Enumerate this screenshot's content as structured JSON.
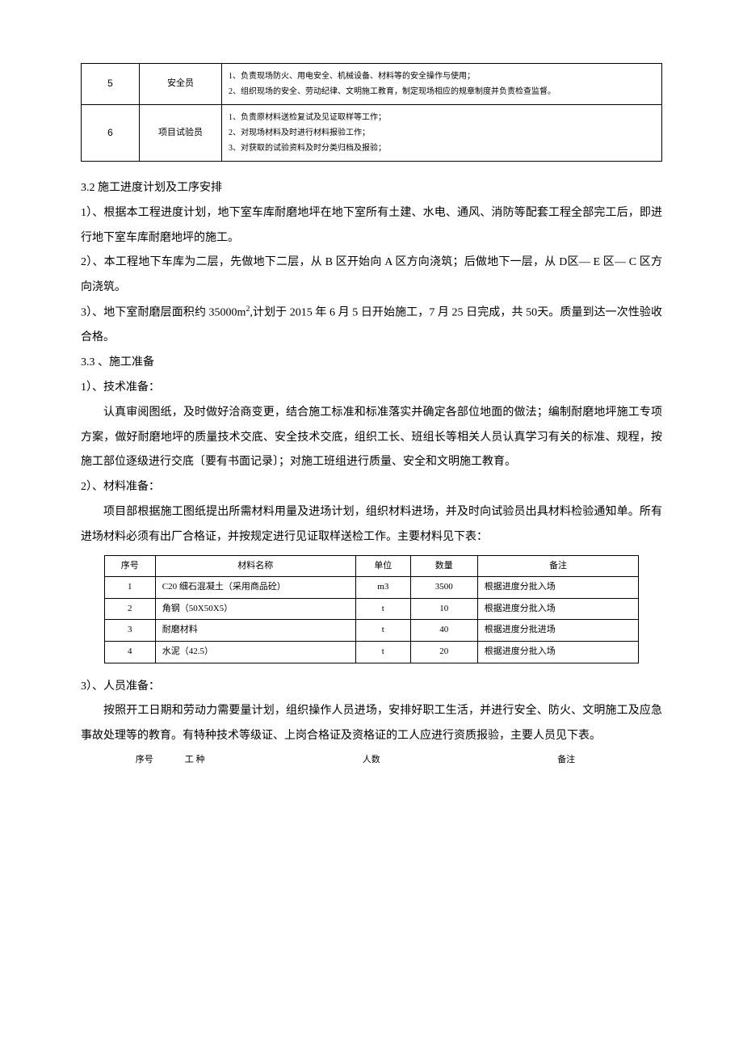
{
  "colors": {
    "text": "#000000",
    "background": "#ffffff",
    "border": "#000000"
  },
  "fonts": {
    "body_family": "SimSun",
    "body_size_pt": 14,
    "table_small_size_pt": 10,
    "table_mid_size_pt": 11,
    "line_height": 2.2
  },
  "resp_table": {
    "rows": [
      {
        "num": "5",
        "role": "安全员",
        "duties": [
          "1、负责现场防火、用电安全、机械设备、材料等的安全操作与使用；",
          "2、组织现场的安全、劳动纪律、文明施工教育，制定现场相应的规章制度并负责检查监督。"
        ]
      },
      {
        "num": "6",
        "role": "项目试验员",
        "duties": [
          "1、负责原材料送检复试及见证取样等工作；",
          "2、对现场材料及时进行材料报验工作；",
          "3、对获取的试验资料及时分类归档及报验；"
        ]
      }
    ]
  },
  "section_3_2_title": "3.2  施工进度计划及工序安排",
  "p1": "1）、根据本工程进度计划，地下室车库耐磨地坪在地下室所有土建、水电、通风、消防等配套工程全部完工后，即进行地下室车库耐磨地坪的施工。",
  "p2": "2）、本工程地下车库为二层，先做地下二层，从 B 区开始向 A 区方向浇筑；后做地下一层，从 D区— E 区— C 区方向浇筑。",
  "p3a": "3）、地下室耐磨层面积约 35000m",
  "p3sup": "2",
  "p3b": ",计划于 2015 年 6 月 5 日开始施工，7 月 25 日完成，共 50天。质量到达一次性验收合格。",
  "section_3_3_title": "3.3 、施工准备",
  "prep_1_title": "1）、技术准备：",
  "prep_1_body": "认真审阅图纸，及时做好洽商变更，结合施工标准和标准落实并确定各部位地面的做法；编制耐磨地坪施工专项方案，做好耐磨地坪的质量技术交底、安全技术交底，组织工长、班组长等相关人员认真学习有关的标准、规程，按施工部位逐级进行交底〔要有书面记录〕；对施工班组进行质量、安全和文明施工教育。",
  "prep_2_title": "2）、材料准备：",
  "prep_2_body": "项目部根据施工图纸提出所需材料用量及进场计划，组织材料进场，并及时向试验员出具材料检验通知单。所有进场材料必须有出厂合格证，并按规定进行见证取样送检工作。主要材料见下表：",
  "mat_table": {
    "headers": [
      "序号",
      "材料名称",
      "单位",
      "数量",
      "备注"
    ],
    "rows": [
      {
        "num": "1",
        "name": "C20 细石混凝土（采用商品砼）",
        "unit": "m3",
        "qty": "3500",
        "note": "根据进度分批入场"
      },
      {
        "num": "2",
        "name": "角钢（50X50X5）",
        "unit": "t",
        "qty": "10",
        "note": "根据进度分批入场"
      },
      {
        "num": "3",
        "name": "耐磨材料",
        "unit": "t",
        "qty": "40",
        "note": "根据进度分批进场"
      },
      {
        "num": "4",
        "name": "水泥（42.5）",
        "unit": "t",
        "qty": "20",
        "note": "根据进度分批入场"
      }
    ]
  },
  "prep_3_title": "3）、人员准备：",
  "prep_3_body": "按照开工日期和劳动力需要量计划，组织操作人员进场，安排好职工生活，并进行安全、防火、文明施工及应急事故处理等的教育。有特种技术等级证、上岗合格证及资格证的工人应进行资质报验，主要人员见下表。",
  "person_header": {
    "c1": "序号",
    "c2": "工 种",
    "c3": "人数",
    "c4": "备注"
  }
}
